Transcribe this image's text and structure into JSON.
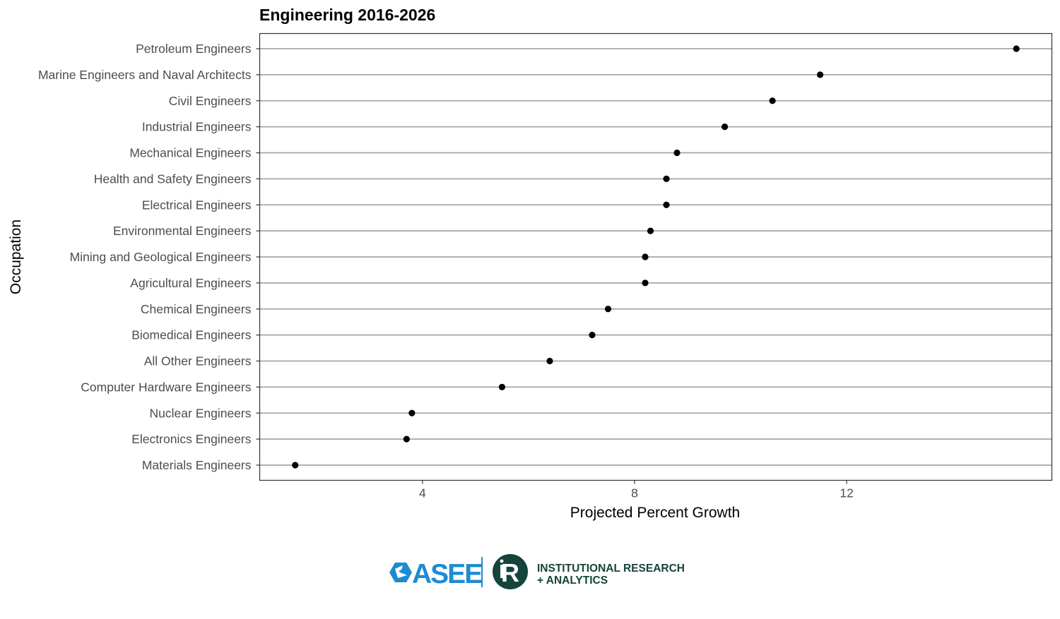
{
  "chart_data": {
    "type": "scatter",
    "title": "Engineering 2016-2026",
    "xlabel": "Projected Percent Growth",
    "ylabel": "Occupation",
    "xlim": [
      0.93,
      15.87
    ],
    "xticks": [
      4,
      8,
      12
    ],
    "grid": "horizontal",
    "categories": [
      "Petroleum Engineers",
      "Marine Engineers and Naval Architects",
      "Civil Engineers",
      "Industrial Engineers",
      "Mechanical Engineers",
      "Health and Safety Engineers",
      "Electrical Engineers",
      "Environmental Engineers",
      "Mining and Geological Engineers",
      "Agricultural Engineers",
      "Chemical Engineers",
      "Biomedical Engineers",
      "All Other Engineers",
      "Computer Hardware Engineers",
      "Nuclear Engineers",
      "Electronics Engineers",
      "Materials Engineers"
    ],
    "values": [
      15.2,
      11.5,
      10.6,
      9.7,
      8.8,
      8.6,
      8.6,
      8.3,
      8.2,
      8.2,
      7.5,
      7.2,
      6.4,
      5.5,
      3.8,
      3.7,
      1.6
    ],
    "point_color": "#000000",
    "grid_color": "#a6a6a6"
  },
  "logos": {
    "asee_text": "ASEE",
    "asee_color": "#1d8bd3",
    "ira_line1": "INSTITUTIONAL RESEARCH",
    "ira_line2": "+ ANALYTICS",
    "ira_color": "#14443b"
  }
}
